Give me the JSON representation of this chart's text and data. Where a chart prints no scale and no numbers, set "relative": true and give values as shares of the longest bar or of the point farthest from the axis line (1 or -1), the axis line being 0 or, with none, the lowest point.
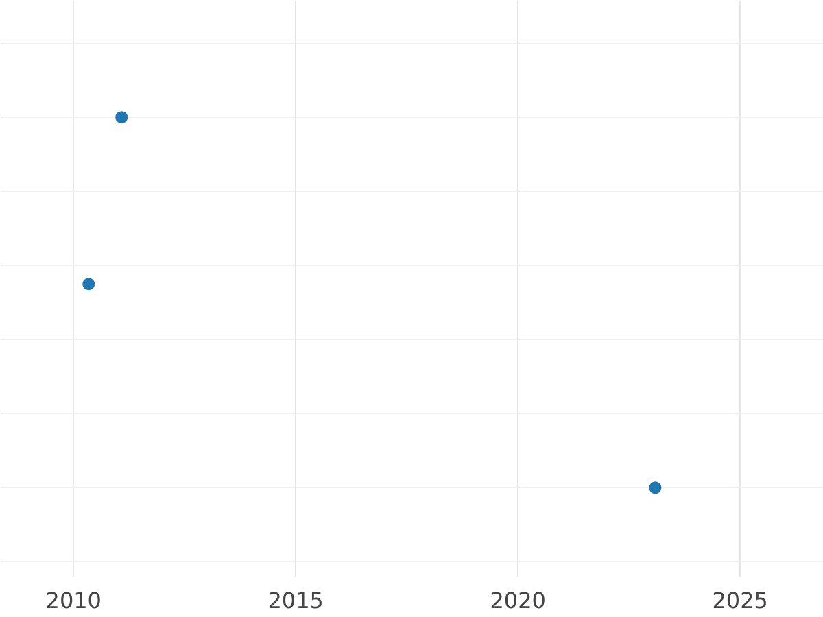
{
  "chart_data": {
    "type": "scatter",
    "relative": true,
    "x": [
      2010.34,
      2011.08,
      2023.09
    ],
    "series": [
      {
        "color": "#1f77b4",
        "values": [
          0.55,
          1,
          0
        ]
      }
    ],
    "xlim": [
      2008.36,
      2026.88
    ],
    "xticks": [
      2010,
      2015,
      2020,
      2025
    ],
    "grid": true,
    "marker": "circle"
  }
}
